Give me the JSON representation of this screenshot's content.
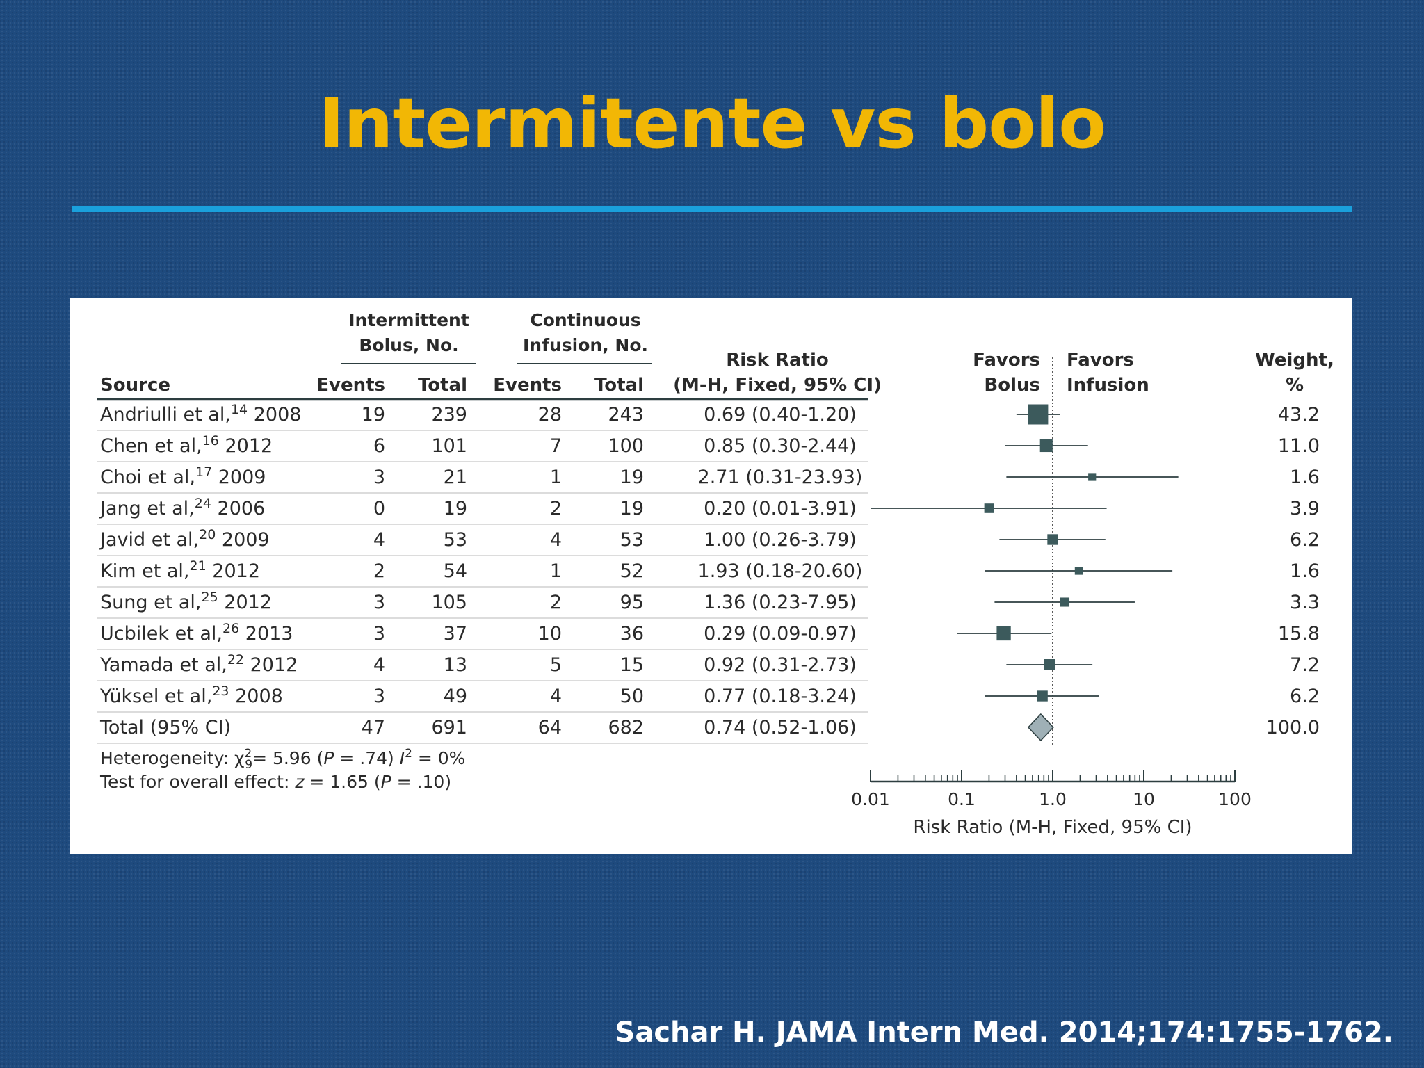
{
  "slide": {
    "title": "Intermitente vs bolo",
    "citation": "Sachar H. JAMA Intern Med. 2014;174:1755-1762."
  },
  "chart_data": {
    "type": "forest",
    "headers": {
      "source": "Source",
      "group1_line1": "Intermittent",
      "group1_line2": "Bolus, No.",
      "group2_line1": "Continuous",
      "group2_line2": "Infusion, No.",
      "events": "Events",
      "total": "Total",
      "rr_line1": "Risk Ratio",
      "rr_line2": "(M-H, Fixed, 95% CI)",
      "favors_left_1": "Favors",
      "favors_left_2": "Bolus",
      "favors_right_1": "Favors",
      "favors_right_2": "Infusion",
      "weight_line1": "Weight,",
      "weight_line2": "%"
    },
    "studies": [
      {
        "author": "Andriulli et al,",
        "ref": "14",
        "year": "2008",
        "events1": "19",
        "total1": "239",
        "events2": "28",
        "total2": "243",
        "rr_text": "0.69 (0.40-1.20)",
        "rr": 0.69,
        "lo": 0.4,
        "hi": 1.2,
        "weight": "43.2",
        "w": 43.2
      },
      {
        "author": "Chen et al,",
        "ref": "16",
        "year": "2012",
        "events1": "6",
        "total1": "101",
        "events2": "7",
        "total2": "100",
        "rr_text": "0.85 (0.30-2.44)",
        "rr": 0.85,
        "lo": 0.3,
        "hi": 2.44,
        "weight": "11.0",
        "w": 11.0
      },
      {
        "author": "Choi et al,",
        "ref": "17",
        "year": "2009",
        "events1": "3",
        "total1": "21",
        "events2": "1",
        "total2": "19",
        "rr_text": "2.71 (0.31-23.93)",
        "rr": 2.71,
        "lo": 0.31,
        "hi": 23.93,
        "weight": "1.6",
        "w": 1.6
      },
      {
        "author": "Jang et al,",
        "ref": "24",
        "year": "2006",
        "events1": "0",
        "total1": "19",
        "events2": "2",
        "total2": "19",
        "rr_text": "0.20 (0.01-3.91)",
        "rr": 0.2,
        "lo": 0.01,
        "hi": 3.91,
        "weight": "3.9",
        "w": 3.9
      },
      {
        "author": "Javid et al,",
        "ref": "20",
        "year": "2009",
        "events1": "4",
        "total1": "53",
        "events2": "4",
        "total2": "53",
        "rr_text": "1.00 (0.26-3.79)",
        "rr": 1.0,
        "lo": 0.26,
        "hi": 3.79,
        "weight": "6.2",
        "w": 6.2
      },
      {
        "author": "Kim et al,",
        "ref": "21",
        "year": "2012",
        "events1": "2",
        "total1": "54",
        "events2": "1",
        "total2": "52",
        "rr_text": "1.93 (0.18-20.60)",
        "rr": 1.93,
        "lo": 0.18,
        "hi": 20.6,
        "weight": "1.6",
        "w": 1.6
      },
      {
        "author": "Sung et al,",
        "ref": "25",
        "year": "2012",
        "events1": "3",
        "total1": "105",
        "events2": "2",
        "total2": "95",
        "rr_text": "1.36 (0.23-7.95)",
        "rr": 1.36,
        "lo": 0.23,
        "hi": 7.95,
        "weight": "3.3",
        "w": 3.3
      },
      {
        "author": "Ucbilek et al,",
        "ref": "26",
        "year": "2013",
        "events1": "3",
        "total1": "37",
        "events2": "10",
        "total2": "36",
        "rr_text": "0.29 (0.09-0.97)",
        "rr": 0.29,
        "lo": 0.09,
        "hi": 0.97,
        "weight": "15.8",
        "w": 15.8
      },
      {
        "author": "Yamada et al,",
        "ref": "22",
        "year": "2012",
        "events1": "4",
        "total1": "13",
        "events2": "5",
        "total2": "15",
        "rr_text": "0.92 (0.31-2.73)",
        "rr": 0.92,
        "lo": 0.31,
        "hi": 2.73,
        "weight": "7.2",
        "w": 7.2
      },
      {
        "author": "Yüksel et al,",
        "ref": "23",
        "year": "2008",
        "events1": "3",
        "total1": "49",
        "events2": "4",
        "total2": "50",
        "rr_text": "0.77 (0.18-3.24)",
        "rr": 0.77,
        "lo": 0.18,
        "hi": 3.24,
        "weight": "6.2",
        "w": 6.2
      }
    ],
    "total": {
      "label": "Total  (95% CI)",
      "events1": "47",
      "total1": "691",
      "events2": "64",
      "total2": "682",
      "rr_text": "0.74 (0.52-1.06)",
      "rr": 0.74,
      "lo": 0.52,
      "hi": 1.06,
      "weight": "100.0"
    },
    "heterogeneity": {
      "prefix": "Heterogeneity: χ",
      "sup": "2",
      "sub": "9",
      "rest": "= 5.96  (",
      "p": "P",
      "prest": " = .74) ",
      "i": "I",
      "isup": "2",
      "irest": " = 0%"
    },
    "overall_effect": {
      "prefix": "Test for overall effect: ",
      "z": "z",
      "mid": " = 1.65 (",
      "p": "P",
      "rest": " = .10)"
    },
    "x_axis": {
      "label": "Risk Ratio (M-H, Fixed, 95% CI)",
      "scale": "log",
      "range": [
        0.01,
        100
      ],
      "ticks": [
        0.01,
        0.1,
        1.0,
        10,
        100
      ],
      "tick_labels": [
        "0.01",
        "0.1",
        "1.0",
        "10",
        "100"
      ]
    },
    "colors": {
      "marker": "#3c5a5c",
      "diamond": "#9fb0b6",
      "line": "#2d3e40",
      "text": "#2a2a2a"
    }
  }
}
